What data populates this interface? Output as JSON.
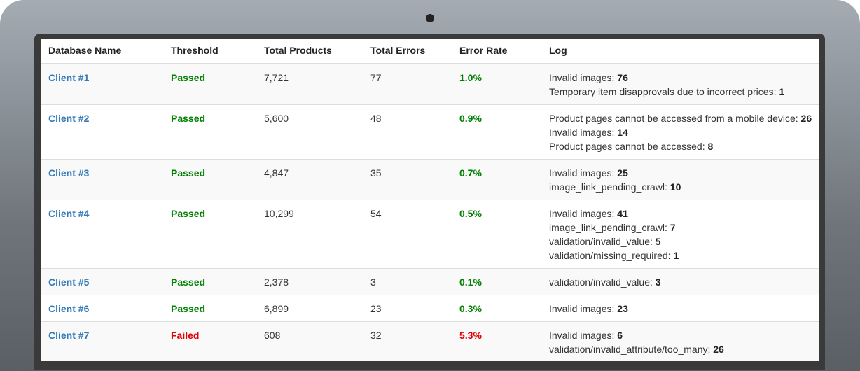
{
  "table": {
    "headers": [
      "Database Name",
      "Threshold",
      "Total Products",
      "Total Errors",
      "Error Rate",
      "Log"
    ],
    "rows": [
      {
        "name": "Client #1",
        "threshold": "Passed",
        "products": "7,721",
        "errors": "77",
        "rate": "1.0%",
        "log": [
          {
            "label": "Invalid images",
            "count": "76"
          },
          {
            "label": "Temporary item disapprovals due to incorrect prices",
            "count": "1"
          }
        ]
      },
      {
        "name": "Client #2",
        "threshold": "Passed",
        "products": "5,600",
        "errors": "48",
        "rate": "0.9%",
        "log": [
          {
            "label": "Product pages cannot be accessed from a mobile device",
            "count": "26"
          },
          {
            "label": "Invalid images",
            "count": "14"
          },
          {
            "label": "Product pages cannot be accessed",
            "count": "8"
          }
        ]
      },
      {
        "name": "Client #3",
        "threshold": "Passed",
        "products": "4,847",
        "errors": "35",
        "rate": "0.7%",
        "log": [
          {
            "label": "Invalid images",
            "count": "25"
          },
          {
            "label": "image_link_pending_crawl",
            "count": "10"
          }
        ]
      },
      {
        "name": "Client #4",
        "threshold": "Passed",
        "products": "10,299",
        "errors": "54",
        "rate": "0.5%",
        "log": [
          {
            "label": "Invalid images",
            "count": "41"
          },
          {
            "label": "image_link_pending_crawl",
            "count": "7"
          },
          {
            "label": "validation/invalid_value",
            "count": "5"
          },
          {
            "label": "validation/missing_required",
            "count": "1"
          }
        ]
      },
      {
        "name": "Client #5",
        "threshold": "Passed",
        "products": "2,378",
        "errors": "3",
        "rate": "0.1%",
        "log": [
          {
            "label": "validation/invalid_value",
            "count": "3"
          }
        ]
      },
      {
        "name": "Client #6",
        "threshold": "Passed",
        "products": "6,899",
        "errors": "23",
        "rate": "0.3%",
        "log": [
          {
            "label": "Invalid images",
            "count": "23"
          }
        ]
      },
      {
        "name": "Client #7",
        "threshold": "Failed",
        "products": "608",
        "errors": "32",
        "rate": "5.3%",
        "log": [
          {
            "label": "Invalid images",
            "count": "6"
          },
          {
            "label": "validation/invalid_attribute/too_many",
            "count": "26"
          }
        ]
      }
    ]
  },
  "colors": {
    "link": "#337ab7",
    "passed": "#008000",
    "failed": "#e00000"
  }
}
